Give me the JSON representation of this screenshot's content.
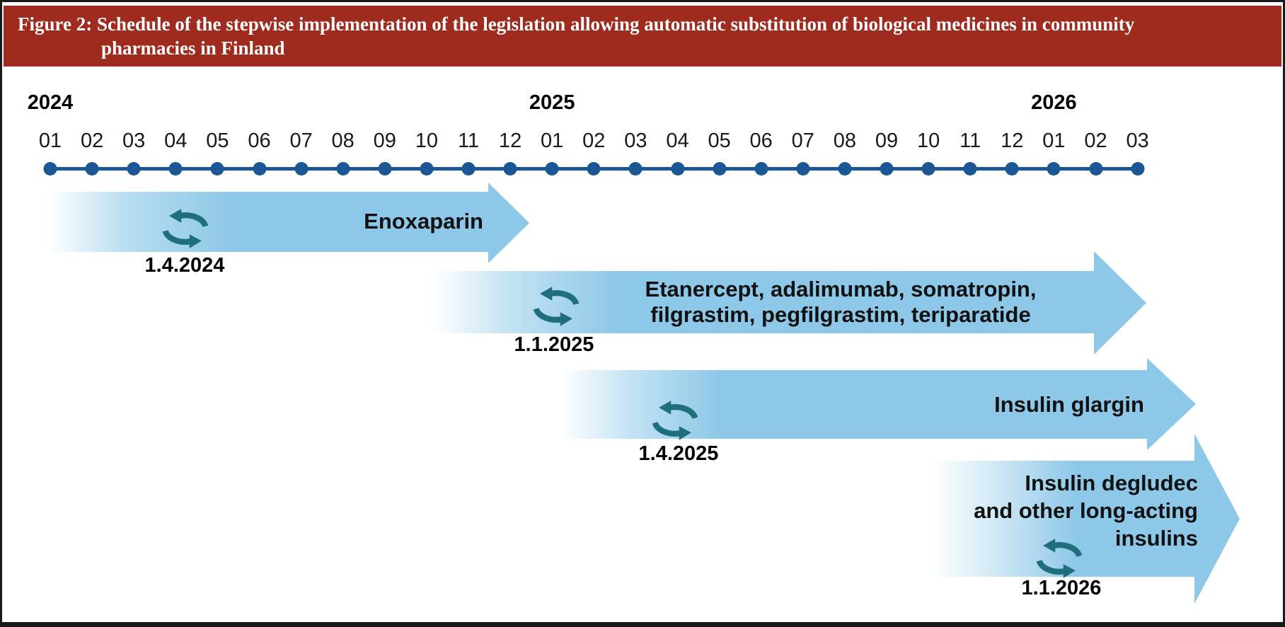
{
  "header": {
    "title_line1": "Figure 2: Schedule of the stepwise implementation of the legislation allowing automatic substitution of biological medicines in community",
    "title_line2": "pharmacies in Finland"
  },
  "timeline": {
    "years": [
      {
        "label": "2024",
        "month_index": 0
      },
      {
        "label": "2025",
        "month_index": 12
      },
      {
        "label": "2026",
        "month_index": 24
      }
    ],
    "months": [
      "01",
      "02",
      "03",
      "04",
      "05",
      "06",
      "07",
      "08",
      "09",
      "10",
      "11",
      "12",
      "01",
      "02",
      "03",
      "04",
      "05",
      "06",
      "07",
      "08",
      "09",
      "10",
      "11",
      "12",
      "01",
      "02",
      "03"
    ]
  },
  "rows": [
    {
      "label": "Enoxaparin",
      "date": "1.4.2024",
      "shown_start": "01/2024",
      "shown_end": "01/2025",
      "open_ended": false
    },
    {
      "label": "Etanercept, adalimumab, somatropin,\nfilgrastim, pegfilgrastim, teriparatide",
      "date": "1.1.2025",
      "shown_start": "10/2024",
      "shown_end": "03/2026",
      "open_ended": true
    },
    {
      "label": "Insulin glargin",
      "date": "1.4.2025",
      "shown_start": "01/2025",
      "shown_end": "03/2026",
      "open_ended": true
    },
    {
      "label": "Insulin degludec\nand other long-acting\ninsulins",
      "date": "1.1.2026",
      "shown_start": "10/2025",
      "shown_end": "03/2026",
      "open_ended": true
    }
  ],
  "icons": {
    "sync_icon_meaning": "substitution-cycle-sync-icon"
  },
  "colors": {
    "header_bg": "#9e2b1e",
    "header_text": "#ffffff",
    "timeline_blue": "#1b5795",
    "arrow_blue": "#8dc8e8",
    "sync_icon_teal": "#1e6e7e"
  }
}
